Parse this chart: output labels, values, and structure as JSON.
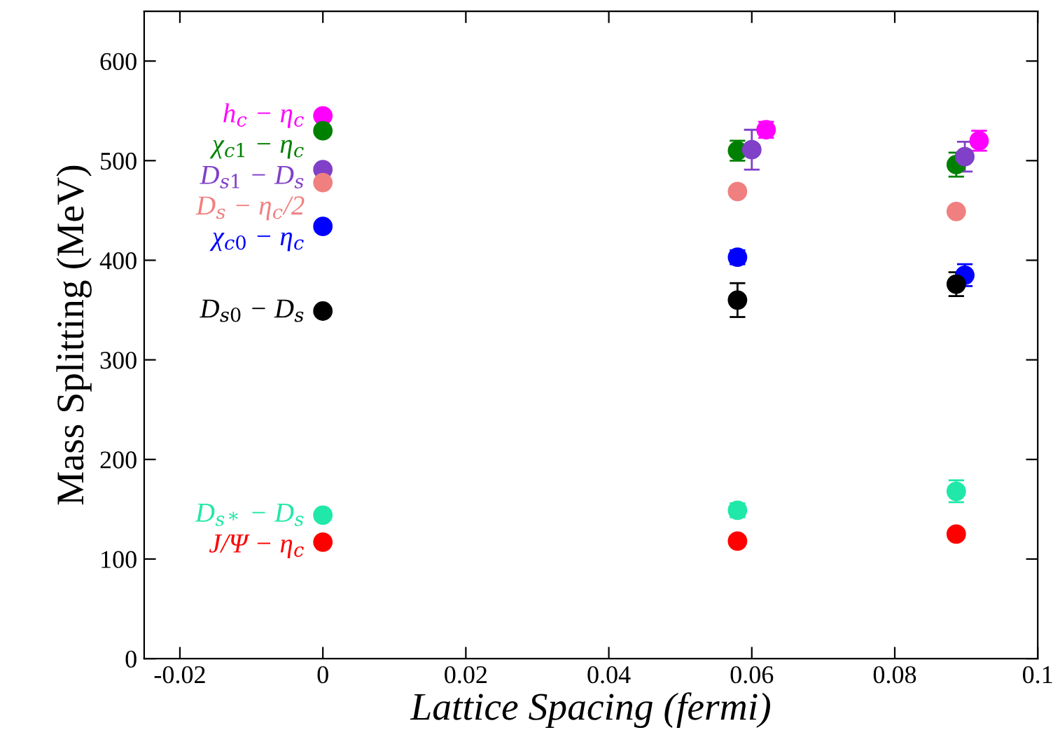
{
  "chart_data": {
    "type": "scatter",
    "xlabel": "Lattice Spacing (fermi)",
    "ylabel": "Mass Splitting (MeV)",
    "xlim": [
      -0.025,
      0.1
    ],
    "ylim": [
      0,
      650
    ],
    "xticks": [
      -0.02,
      0,
      0.02,
      0.04,
      0.06,
      0.08,
      0.1
    ],
    "yticks": [
      0,
      100,
      200,
      300,
      400,
      500,
      600
    ],
    "grid": false,
    "legend": false,
    "marker": "circle",
    "series": [
      {
        "name": "h$_{c}$ − η$_{c}$",
        "color": "#ff00ff",
        "x": [
          0,
          0.062,
          0.0918
        ],
        "values": [
          545,
          531,
          520
        ],
        "errors": [
          null,
          8,
          10
        ]
      },
      {
        "name": "χ$_{c1}$ − η$_{c}$",
        "color": "#008000",
        "x": [
          0,
          0.058,
          0.0886
        ],
        "values": [
          530,
          510,
          496
        ],
        "errors": [
          null,
          10,
          12
        ]
      },
      {
        "name": "D$_{s1}$ − D$_{s}$",
        "color": "#8040c8",
        "x": [
          0,
          0.06,
          0.0898
        ],
        "values": [
          491,
          511,
          504
        ],
        "errors": [
          null,
          20,
          15
        ]
      },
      {
        "name": "D$_{s}$ − η$_{c}$/2",
        "color": "#f08080",
        "x": [
          0,
          0.058,
          0.0886
        ],
        "values": [
          478,
          469,
          449
        ],
        "errors": [
          null,
          null,
          null
        ]
      },
      {
        "name": "χ$_{c0}$ − η$_{c}$",
        "color": "#0000ff",
        "x": [
          0,
          0.058,
          0.0898
        ],
        "values": [
          434,
          403,
          385
        ],
        "errors": [
          null,
          7,
          11
        ]
      },
      {
        "name": "D$_{s0}$ − D$_{s}$",
        "color": "#000000",
        "x": [
          0,
          0.058,
          0.0886
        ],
        "values": [
          349,
          360,
          376
        ],
        "errors": [
          null,
          17,
          12
        ]
      },
      {
        "name": "D$_{s*}$ − D$_{s}$",
        "color": "#20e8a8",
        "x": [
          0,
          0.058,
          0.0886
        ],
        "values": [
          144,
          149,
          168
        ],
        "errors": [
          null,
          7,
          11
        ]
      },
      {
        "name": "J/Ψ − η$_{c}$",
        "color": "#ff0000",
        "x": [
          0,
          0.058,
          0.0886
        ],
        "values": [
          117,
          118,
          125
        ],
        "errors": [
          null,
          null,
          null
        ]
      }
    ]
  }
}
